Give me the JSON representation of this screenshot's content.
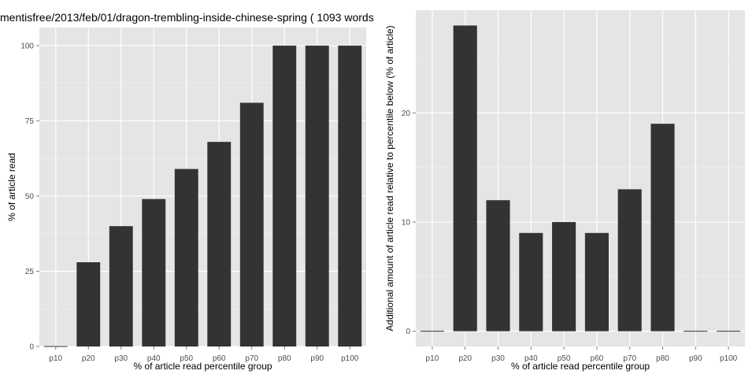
{
  "page_title": "mentisfree/2013/feb/01/dragon-trembling-inside-chinese-spring ( 1093 words",
  "chart_data": [
    {
      "type": "bar",
      "categories": [
        "p10",
        "p20",
        "p30",
        "p40",
        "p50",
        "p60",
        "p70",
        "p80",
        "p90",
        "p100"
      ],
      "values": [
        0,
        28,
        40,
        49,
        59,
        68,
        81,
        100,
        100,
        100
      ],
      "xlabel": "% of article read percentile group",
      "ylabel": "% of article read",
      "ylim": [
        0,
        106
      ],
      "yticks": [
        0,
        25,
        50,
        75,
        100
      ],
      "grid": true,
      "bar_color": "#333333",
      "panel_color": "#e5e5e5"
    },
    {
      "type": "bar",
      "categories": [
        "p10",
        "p20",
        "p30",
        "p40",
        "p50",
        "p60",
        "p70",
        "p80",
        "p90",
        "p100"
      ],
      "values": [
        0,
        28,
        12,
        9,
        10,
        9,
        13,
        19,
        0,
        0
      ],
      "xlabel": "% of article read percentile group",
      "ylabel": "Additional amount of article read relative to percentile below (% of article)",
      "ylim": [
        -1.4,
        29.4
      ],
      "yticks": [
        0,
        10,
        20
      ],
      "grid": true,
      "bar_color": "#333333",
      "panel_color": "#e5e5e5"
    }
  ]
}
